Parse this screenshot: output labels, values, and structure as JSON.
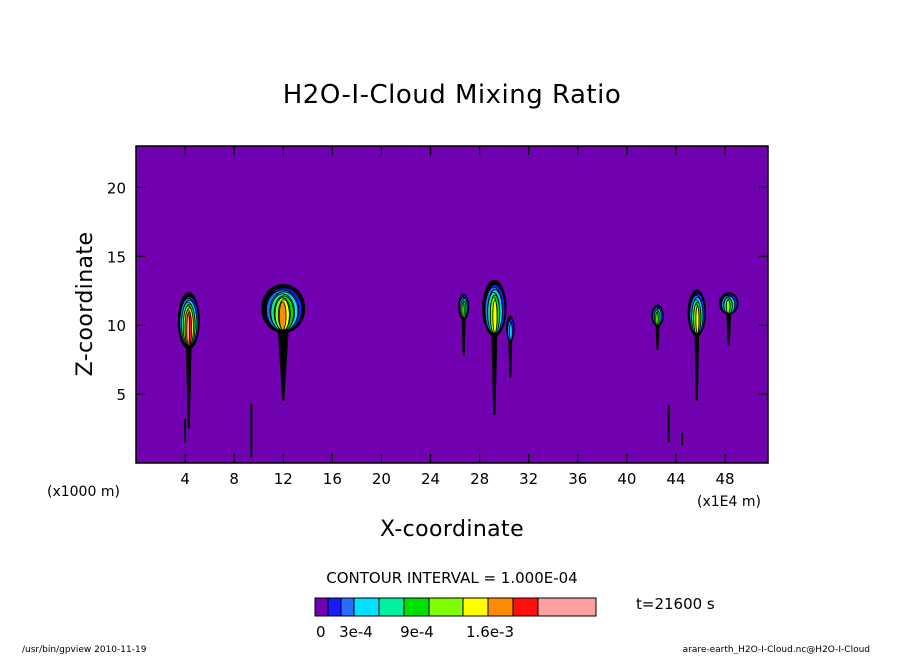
{
  "chart_data": {
    "type": "heatmap",
    "title": "H2O-I-Cloud Mixing Ratio",
    "xlabel": "X-coordinate",
    "ylabel": "Z-coordinate",
    "x_unit_left": "(x1000 m)",
    "x_unit_right": "(x1E4 m)",
    "xlim": [
      0,
      51.5
    ],
    "ylim": [
      0,
      23
    ],
    "x_ticks": [
      4,
      8,
      12,
      16,
      20,
      24,
      28,
      32,
      36,
      40,
      44,
      48
    ],
    "x_tick_labels": [
      "4",
      "8",
      "12",
      "16",
      "20",
      "24",
      "28",
      "32",
      "36",
      "40",
      "44",
      "48"
    ],
    "y_ticks": [
      5,
      10,
      15,
      20
    ],
    "y_tick_labels": [
      "5",
      "10",
      "15",
      "20"
    ],
    "contour_interval": "CONTOUR INTERVAL = 1.000E-04",
    "time_label": "t=21600 s",
    "colorbar": {
      "colors": [
        "#7000b0",
        "#1a1aff",
        "#2a6cff",
        "#00e0ff",
        "#00f0a0",
        "#00e000",
        "#80ff00",
        "#ffff00",
        "#ff8c00",
        "#ff1010",
        "#ffa0a0"
      ],
      "labels": [
        "0",
        "3e-4",
        "9e-4",
        "1.6e-3"
      ],
      "label_positions": [
        0,
        2,
        5,
        8
      ]
    },
    "clouds": [
      {
        "x": 4.3,
        "z_top": 12.4,
        "z_bottom": 2.5,
        "width": 1.8,
        "peak": 10
      },
      {
        "x": 12.0,
        "z_top": 13.0,
        "z_bottom": 4.5,
        "width": 3.6,
        "peak": 8
      },
      {
        "x": 26.7,
        "z_top": 12.3,
        "z_bottom": 7.8,
        "width": 0.9,
        "peak": 6
      },
      {
        "x": 29.2,
        "z_top": 13.3,
        "z_bottom": 3.5,
        "width": 2.0,
        "peak": 7
      },
      {
        "x": 30.5,
        "z_top": 10.7,
        "z_bottom": 6.2,
        "width": 0.7,
        "peak": 3
      },
      {
        "x": 42.5,
        "z_top": 11.5,
        "z_bottom": 8.2,
        "width": 1.0,
        "peak": 6
      },
      {
        "x": 45.7,
        "z_top": 12.6,
        "z_bottom": 4.5,
        "width": 1.5,
        "peak": 7
      },
      {
        "x": 48.3,
        "z_top": 12.4,
        "z_bottom": 8.5,
        "width": 1.6,
        "peak": 6
      }
    ],
    "streaks": [
      {
        "x": 9.4,
        "z_top": 4.3,
        "z_bottom": 0.4
      },
      {
        "x": 4.0,
        "z_top": 3.2,
        "z_bottom": 1.5
      },
      {
        "x": 43.4,
        "z_top": 4.2,
        "z_bottom": 1.5
      },
      {
        "x": 44.5,
        "z_top": 2.2,
        "z_bottom": 1.3
      }
    ]
  },
  "footer": {
    "left": "/usr/bin/gpview   2010-11-19",
    "right": "arare-earth_H2O-I-Cloud.nc@H2O-I-Cloud"
  }
}
